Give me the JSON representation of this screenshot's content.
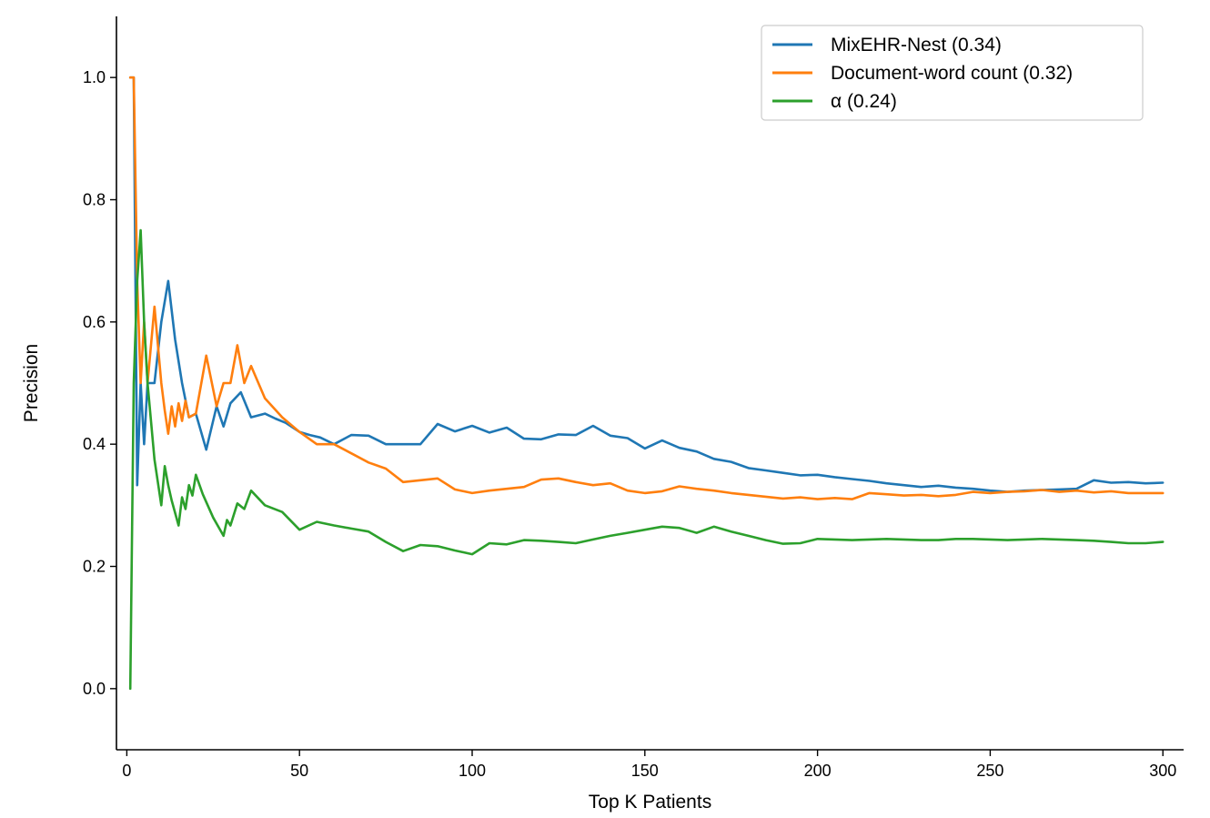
{
  "chart_data": {
    "type": "line",
    "xlabel": "Top K Patients",
    "ylabel": "Precision",
    "xlim": [
      -3,
      306
    ],
    "ylim": [
      -0.1,
      1.1
    ],
    "xticks": [
      0,
      50,
      100,
      150,
      200,
      250,
      300
    ],
    "xtick_labels": [
      "0",
      "50",
      "100",
      "150",
      "200",
      "250",
      "300"
    ],
    "yticks": [
      0.0,
      0.2,
      0.4,
      0.6,
      0.8,
      1.0
    ],
    "ytick_labels": [
      "0.0",
      "0.2",
      "0.4",
      "0.6",
      "0.8",
      "1.0"
    ],
    "grid": false,
    "legend_position": "top-right",
    "series": [
      {
        "name": "MixEHR-Nest (0.34)",
        "color": "#1f77b4",
        "x": [
          1,
          2,
          3,
          4,
          5,
          6,
          8,
          10,
          12,
          14,
          16,
          18,
          20,
          23,
          26,
          28,
          30,
          33,
          36,
          38,
          40,
          43,
          46,
          50,
          53,
          56,
          60,
          65,
          70,
          75,
          80,
          85,
          90,
          95,
          100,
          105,
          110,
          115,
          120,
          125,
          130,
          135,
          140,
          145,
          150,
          155,
          160,
          165,
          170,
          175,
          180,
          185,
          190,
          195,
          200,
          205,
          210,
          215,
          220,
          225,
          230,
          235,
          240,
          245,
          250,
          255,
          260,
          265,
          270,
          275,
          280,
          285,
          290,
          295,
          300
        ],
        "y": [
          1.0,
          1.0,
          0.333,
          0.5,
          0.4,
          0.5,
          0.5,
          0.6,
          0.667,
          0.571,
          0.5,
          0.444,
          0.45,
          0.391,
          0.462,
          0.429,
          0.467,
          0.485,
          0.444,
          0.447,
          0.45,
          0.442,
          0.435,
          0.42,
          0.415,
          0.411,
          0.4,
          0.415,
          0.414,
          0.4,
          0.4,
          0.4,
          0.433,
          0.421,
          0.43,
          0.419,
          0.427,
          0.409,
          0.408,
          0.416,
          0.415,
          0.43,
          0.414,
          0.41,
          0.393,
          0.406,
          0.394,
          0.388,
          0.376,
          0.371,
          0.361,
          0.357,
          0.353,
          0.349,
          0.35,
          0.346,
          0.343,
          0.34,
          0.336,
          0.333,
          0.33,
          0.332,
          0.329,
          0.327,
          0.324,
          0.322,
          0.324,
          0.325,
          0.326,
          0.327,
          0.341,
          0.337,
          0.338,
          0.336,
          0.337
        ]
      },
      {
        "name": "Document-word count (0.32)",
        "color": "#ff7f0e",
        "x": [
          1,
          2,
          3,
          4,
          5,
          6,
          8,
          10,
          11,
          12,
          13,
          14,
          15,
          16,
          17,
          18,
          20,
          23,
          26,
          28,
          30,
          32,
          34,
          36,
          40,
          45,
          50,
          55,
          60,
          65,
          70,
          75,
          80,
          85,
          90,
          95,
          100,
          105,
          110,
          115,
          120,
          125,
          130,
          135,
          140,
          145,
          150,
          155,
          160,
          165,
          170,
          175,
          180,
          185,
          190,
          195,
          200,
          205,
          210,
          215,
          220,
          225,
          230,
          235,
          240,
          245,
          250,
          255,
          260,
          265,
          270,
          275,
          280,
          285,
          290,
          295,
          300
        ],
        "y": [
          1.0,
          1.0,
          0.667,
          0.5,
          0.6,
          0.5,
          0.625,
          0.5,
          0.455,
          0.417,
          0.462,
          0.429,
          0.467,
          0.438,
          0.471,
          0.444,
          0.45,
          0.545,
          0.462,
          0.5,
          0.5,
          0.562,
          0.5,
          0.528,
          0.475,
          0.444,
          0.42,
          0.4,
          0.4,
          0.385,
          0.37,
          0.36,
          0.338,
          0.341,
          0.344,
          0.326,
          0.32,
          0.324,
          0.327,
          0.33,
          0.342,
          0.344,
          0.338,
          0.333,
          0.336,
          0.324,
          0.32,
          0.323,
          0.331,
          0.327,
          0.324,
          0.32,
          0.317,
          0.314,
          0.311,
          0.313,
          0.31,
          0.312,
          0.31,
          0.32,
          0.318,
          0.316,
          0.317,
          0.315,
          0.317,
          0.322,
          0.32,
          0.322,
          0.323,
          0.325,
          0.322,
          0.324,
          0.321,
          0.323,
          0.32,
          0.32,
          0.32
        ]
      },
      {
        "name": "α (0.24)",
        "color": "#2ca02c",
        "x": [
          1,
          2,
          3,
          4,
          5,
          6,
          8,
          10,
          11,
          12,
          13,
          15,
          16,
          17,
          18,
          19,
          20,
          22,
          25,
          28,
          29,
          30,
          32,
          34,
          36,
          40,
          45,
          50,
          55,
          60,
          65,
          70,
          75,
          80,
          85,
          90,
          95,
          100,
          105,
          110,
          115,
          120,
          125,
          130,
          135,
          140,
          145,
          150,
          155,
          160,
          165,
          170,
          175,
          180,
          185,
          190,
          195,
          200,
          205,
          210,
          215,
          220,
          225,
          230,
          235,
          240,
          245,
          250,
          255,
          260,
          265,
          270,
          275,
          280,
          285,
          290,
          295,
          300
        ],
        "y": [
          0.0,
          0.5,
          0.667,
          0.75,
          0.6,
          0.5,
          0.375,
          0.3,
          0.364,
          0.333,
          0.308,
          0.267,
          0.313,
          0.294,
          0.333,
          0.316,
          0.35,
          0.318,
          0.28,
          0.25,
          0.276,
          0.267,
          0.303,
          0.294,
          0.324,
          0.3,
          0.289,
          0.26,
          0.273,
          0.267,
          0.262,
          0.257,
          0.24,
          0.225,
          0.235,
          0.233,
          0.226,
          0.22,
          0.238,
          0.236,
          0.243,
          0.242,
          0.24,
          0.238,
          0.244,
          0.25,
          0.255,
          0.26,
          0.265,
          0.263,
          0.255,
          0.265,
          0.257,
          0.25,
          0.243,
          0.237,
          0.238,
          0.245,
          0.244,
          0.243,
          0.244,
          0.245,
          0.244,
          0.243,
          0.243,
          0.245,
          0.245,
          0.244,
          0.243,
          0.244,
          0.245,
          0.244,
          0.243,
          0.242,
          0.24,
          0.238,
          0.238,
          0.24
        ]
      }
    ]
  }
}
